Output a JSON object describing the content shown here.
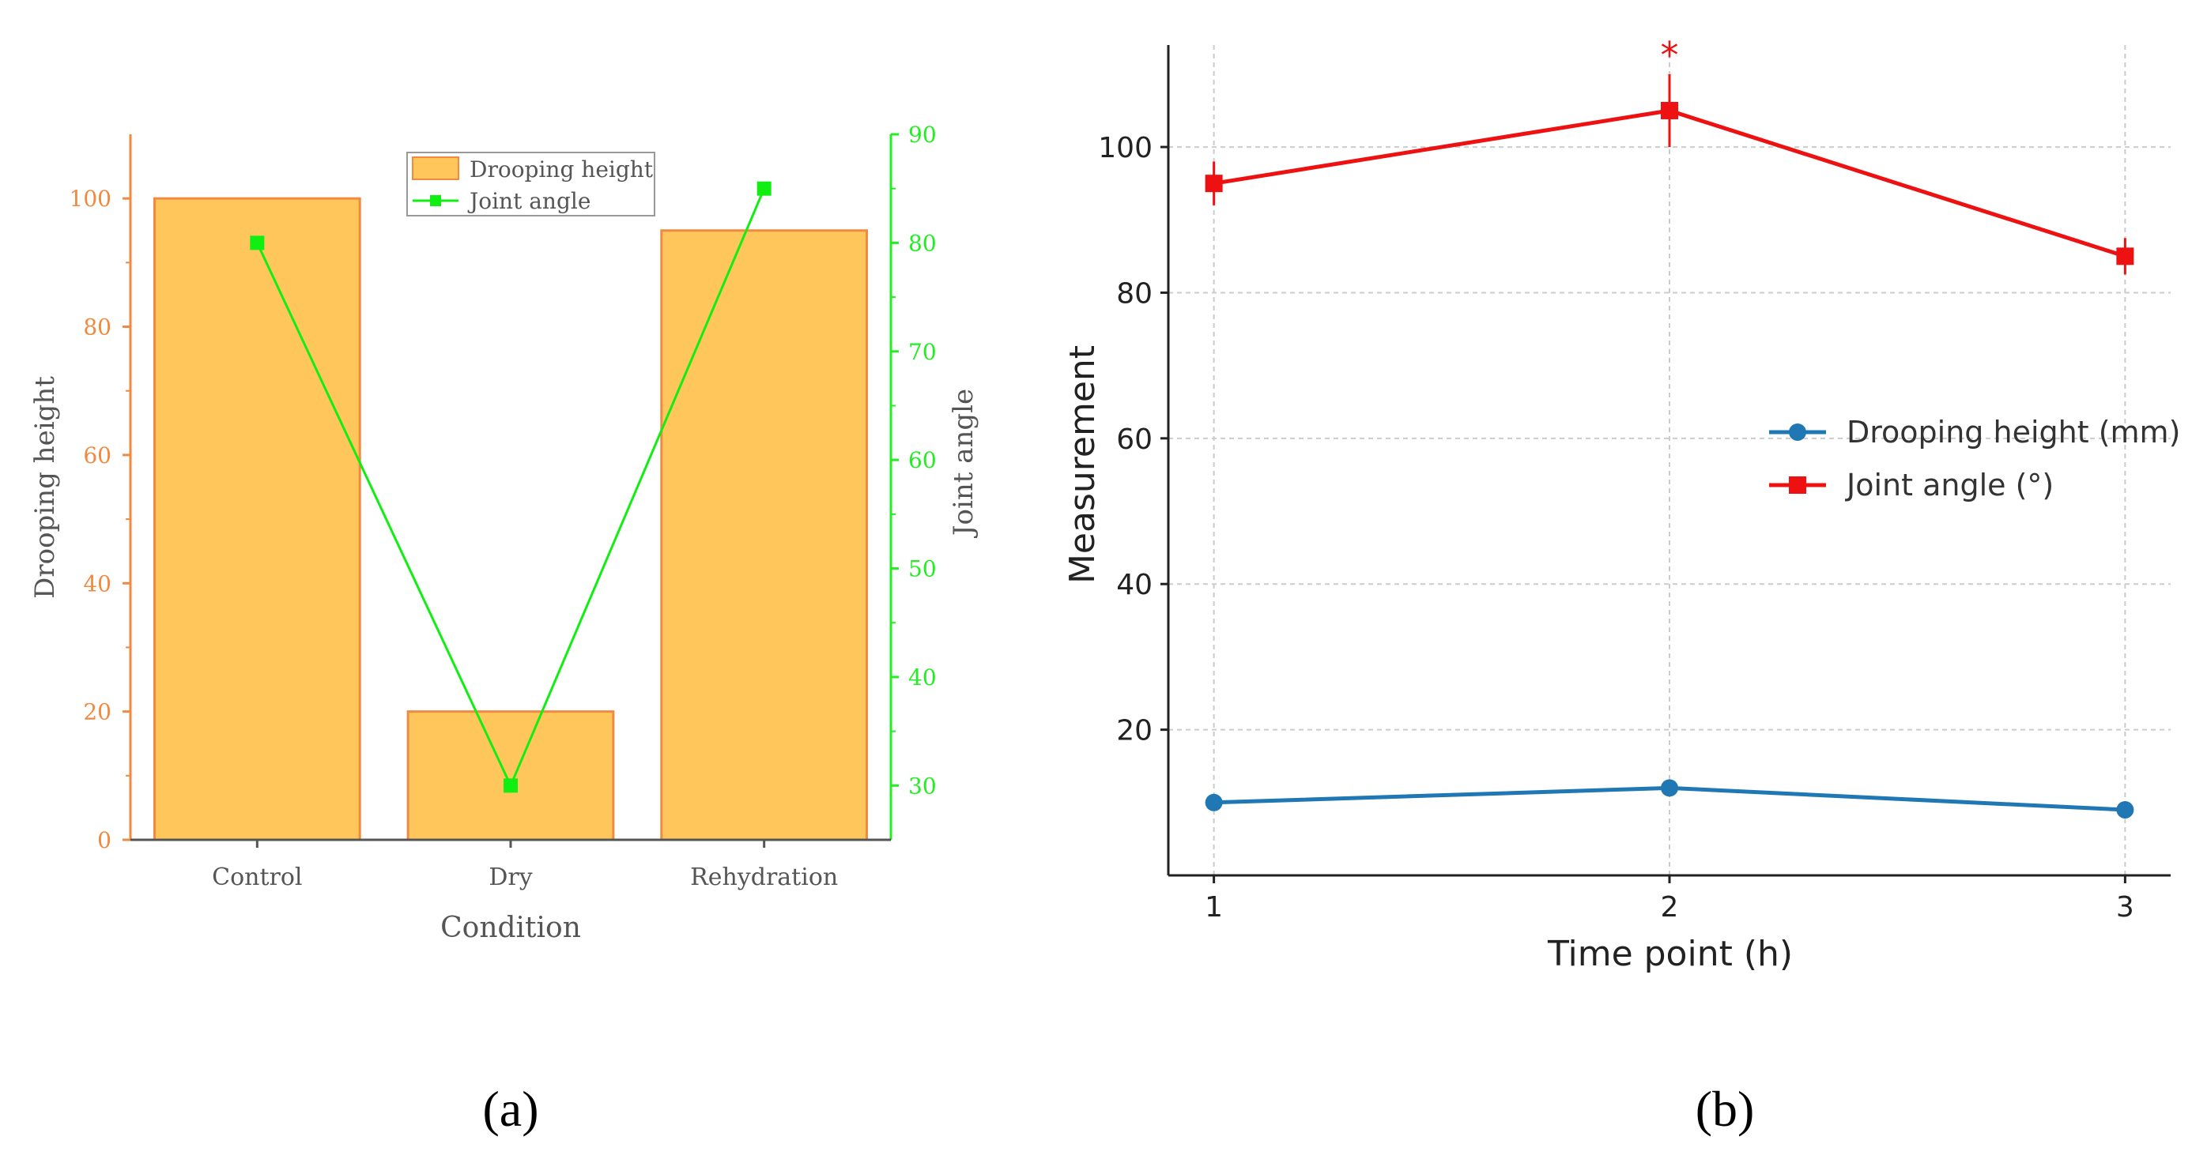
{
  "chart_data": [
    {
      "type": "bar",
      "panel_label": "(a)",
      "title": "",
      "categories": [
        "Control",
        "Dry",
        "Rehydration"
      ],
      "xlabel": "Condition",
      "ylabel": "Drooping height",
      "y2label": "Joint angle",
      "ylim": [
        0,
        110
      ],
      "y2lim": [
        25,
        90
      ],
      "yticks": [
        "0",
        "20",
        "40",
        "60",
        "80",
        "100"
      ],
      "y2ticks": [
        "30",
        "40",
        "50",
        "60",
        "70",
        "80",
        "90"
      ],
      "legend_position": "top-center",
      "series": [
        {
          "name": "Drooping height",
          "kind": "bar",
          "axis": "left",
          "color": "#ffc65c",
          "edge_color": "#f08a40",
          "values": [
            100,
            20,
            95
          ]
        },
        {
          "name": "Joint angle",
          "kind": "line",
          "axis": "right",
          "color": "#11ee11",
          "values": [
            80,
            30,
            85
          ]
        }
      ]
    },
    {
      "type": "line",
      "panel_label": "(b)",
      "title": "",
      "x": [
        1,
        2,
        3
      ],
      "xticks": [
        "1",
        "2",
        "3"
      ],
      "xlabel": "Time point (h)",
      "ylabel": "Measurement",
      "xlim": [
        0.9,
        3.1
      ],
      "ylim": [
        0,
        114
      ],
      "yticks": [
        "20",
        "40",
        "60",
        "80",
        "100"
      ],
      "grid": true,
      "legend_position": "center-right",
      "annotation": "*",
      "series": [
        {
          "name": "Drooping height (mm)",
          "color": "#1f77b4",
          "marker": "circle",
          "values": [
            10,
            12,
            9
          ],
          "errors": [
            0.8,
            0.8,
            0.8
          ]
        },
        {
          "name": "Joint angle (°)",
          "color": "#ee1111",
          "marker": "square",
          "values": [
            95,
            105,
            85
          ],
          "errors": [
            3,
            5,
            2.5
          ]
        }
      ]
    }
  ]
}
